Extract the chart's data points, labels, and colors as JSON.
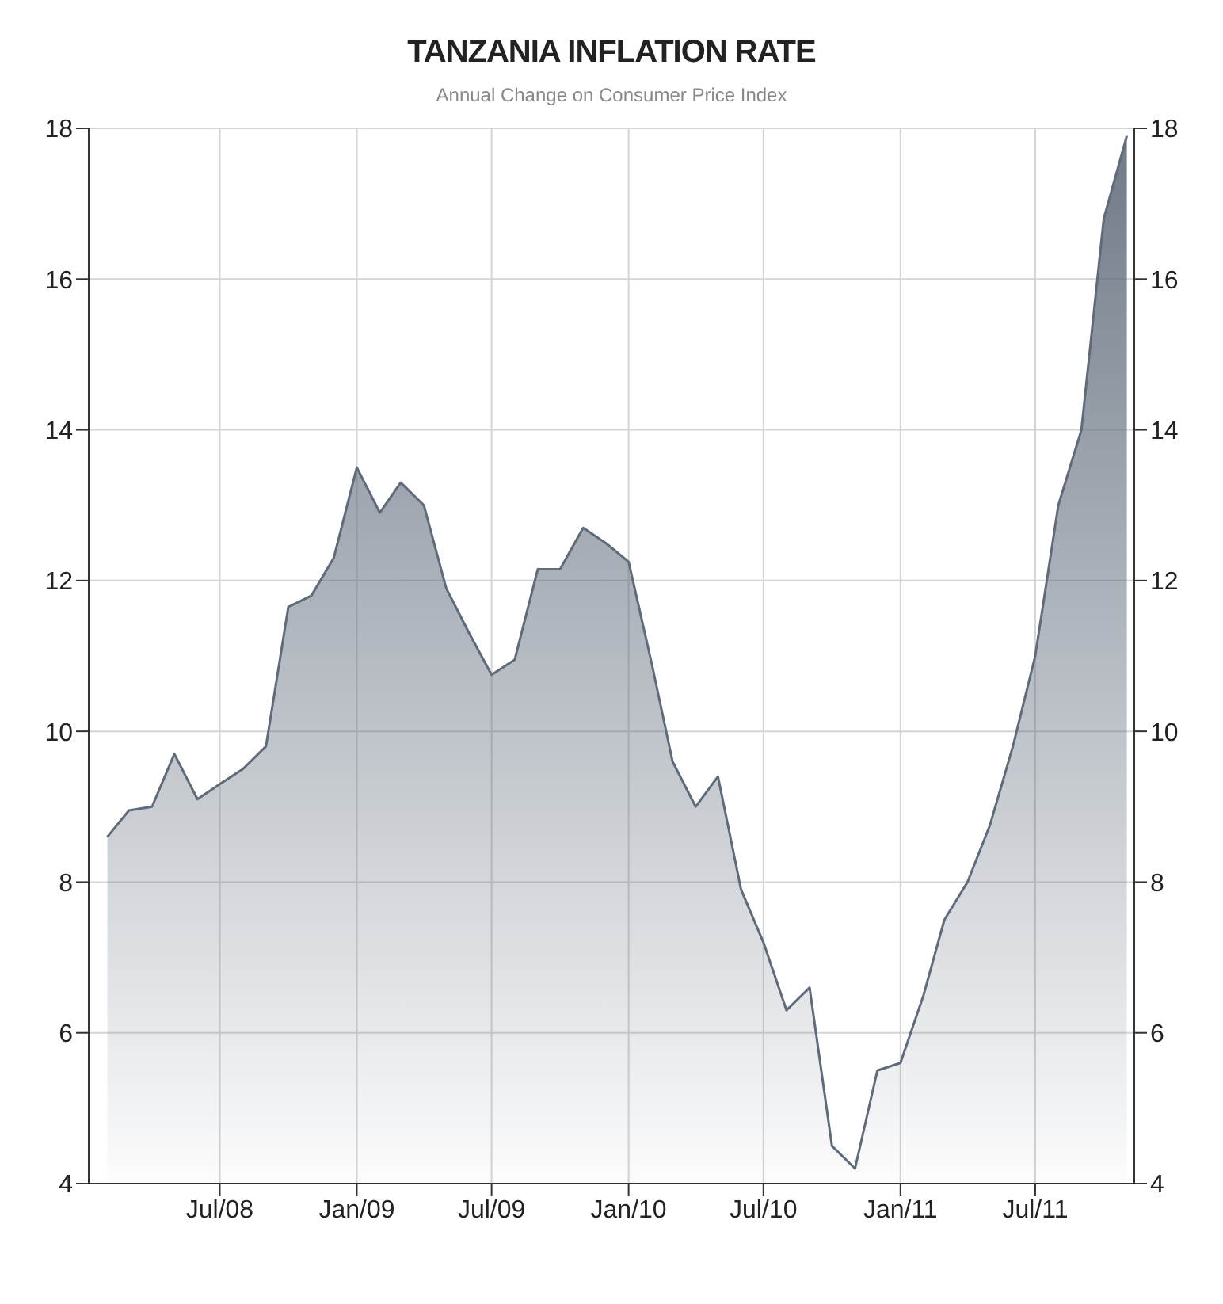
{
  "chart_data": {
    "type": "area",
    "title": "TANZANIA INFLATION RATE",
    "subtitle": "Annual Change on Consumer Price Index",
    "x": [
      "2008-02",
      "2008-03",
      "2008-04",
      "2008-05",
      "2008-06",
      "2008-07",
      "2008-08",
      "2008-09",
      "2008-10",
      "2008-11",
      "2008-12",
      "2009-01",
      "2009-02",
      "2009-03",
      "2009-04",
      "2009-05",
      "2009-06",
      "2009-07",
      "2009-08",
      "2009-09",
      "2009-10",
      "2009-11",
      "2009-12",
      "2010-01",
      "2010-02",
      "2010-03",
      "2010-04",
      "2010-05",
      "2010-06",
      "2010-07",
      "2010-08",
      "2010-09",
      "2010-10",
      "2010-11",
      "2010-12",
      "2011-01",
      "2011-02",
      "2011-03",
      "2011-04",
      "2011-05",
      "2011-06",
      "2011-07",
      "2011-08",
      "2011-09",
      "2011-10",
      "2011-11"
    ],
    "series": [
      {
        "color": "#5f6b7a",
        "values": [
          8.6,
          8.95,
          9.0,
          9.7,
          9.1,
          9.3,
          9.5,
          9.8,
          11.65,
          11.8,
          12.3,
          13.5,
          12.9,
          13.3,
          13.0,
          11.9,
          11.3,
          10.75,
          10.95,
          12.15,
          12.15,
          12.7,
          12.5,
          12.25,
          10.9,
          9.6,
          9.0,
          9.4,
          7.9,
          7.2,
          6.3,
          6.6,
          4.5,
          4.2,
          5.5,
          5.6,
          6.5,
          7.5,
          8.0,
          8.75,
          9.8,
          11.0,
          13.0,
          14.0,
          16.8,
          17.9
        ]
      }
    ],
    "xlim": [
      "2008-01-07",
      "2011-11-11"
    ],
    "xticks": [
      {
        "value": "2008-07",
        "label": "Jul/08"
      },
      {
        "value": "2009-01",
        "label": "Jan/09"
      },
      {
        "value": "2009-07",
        "label": "Jul/09"
      },
      {
        "value": "2010-01",
        "label": "Jan/10"
      },
      {
        "value": "2010-07",
        "label": "Jul/10"
      },
      {
        "value": "2011-01",
        "label": "Jan/11"
      },
      {
        "value": "2011-07",
        "label": "Jul/11"
      }
    ],
    "ylim": [
      4,
      18
    ],
    "yticks": [
      4,
      6,
      8,
      10,
      12,
      14,
      16,
      18
    ],
    "y2lim": [
      4,
      18
    ],
    "y2ticks": [
      4,
      6,
      8,
      10,
      12,
      14,
      16,
      18
    ],
    "grid": true,
    "legend": false
  }
}
